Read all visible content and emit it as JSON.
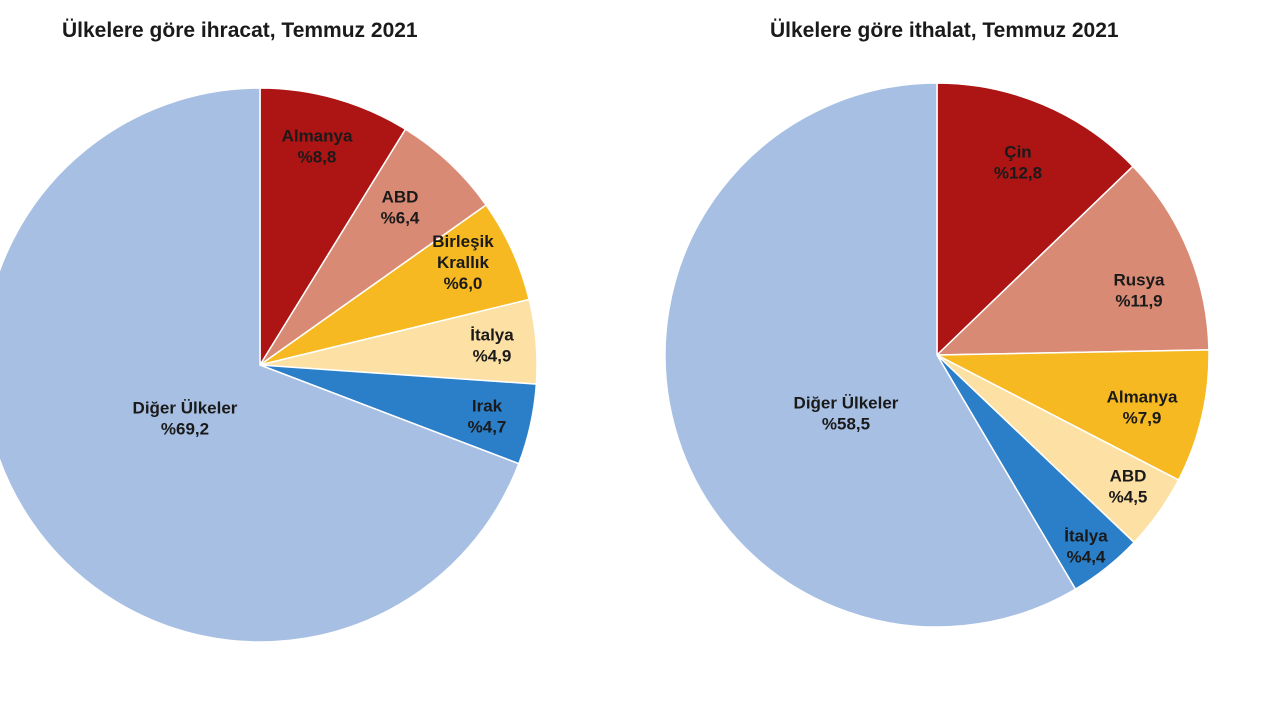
{
  "chart_data": [
    {
      "type": "pie",
      "title": "Ülkelere göre ihracat, Temmuz 2021",
      "slices": [
        {
          "label": [
            "Almanya",
            "%8,8"
          ],
          "value": 8.8,
          "color": "#ad1414"
        },
        {
          "label": [
            "ABD",
            "%6,4"
          ],
          "value": 6.4,
          "color": "#d98a74"
        },
        {
          "label": [
            "Birleşik",
            "Krallık",
            "%6,0"
          ],
          "value": 6.0,
          "color": "#f6b922"
        },
        {
          "label": [
            "İtalya",
            "%4,9"
          ],
          "value": 4.9,
          "color": "#fde0a4"
        },
        {
          "label": [
            "Irak",
            "%4,7"
          ],
          "value": 4.7,
          "color": "#2b7ec8"
        },
        {
          "label": [
            "Diğer Ülkeler",
            "%69,2"
          ],
          "value": 69.2,
          "color": "#a7bfe3"
        }
      ]
    },
    {
      "type": "pie",
      "title": "Ülkelere göre ithalat, Temmuz 2021",
      "slices": [
        {
          "label": [
            "Çin",
            "%12,8"
          ],
          "value": 12.8,
          "color": "#ad1414"
        },
        {
          "label": [
            "Rusya",
            "%11,9"
          ],
          "value": 11.9,
          "color": "#d98a74"
        },
        {
          "label": [
            "Almanya",
            "%7,9"
          ],
          "value": 7.9,
          "color": "#f6b922"
        },
        {
          "label": [
            "ABD",
            "%4,5"
          ],
          "value": 4.5,
          "color": "#fde0a4"
        },
        {
          "label": [
            "İtalya",
            "%4,4"
          ],
          "value": 4.4,
          "color": "#2b7ec8"
        },
        {
          "label": [
            "Diğer Ülkeler",
            "%58,5"
          ],
          "value": 58.5,
          "color": "#a7bfe3"
        }
      ]
    }
  ]
}
